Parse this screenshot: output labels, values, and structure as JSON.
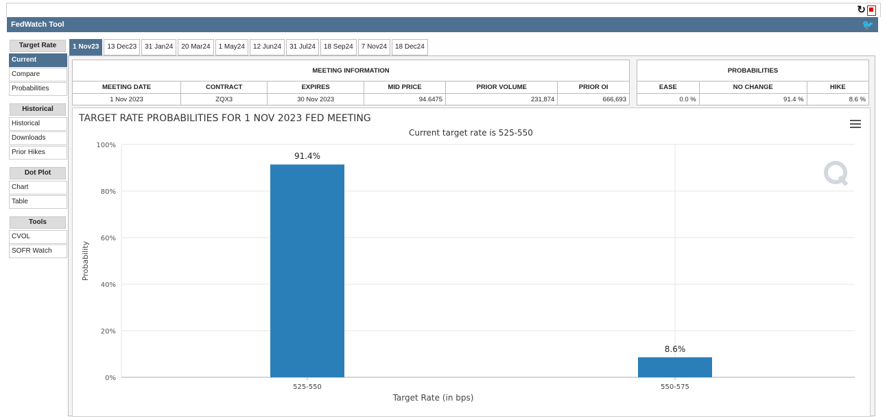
{
  "app": {
    "title": "FedWatch Tool"
  },
  "sidebar": {
    "sections": [
      {
        "title": "Target Rate",
        "items": [
          "Current",
          "Compare",
          "Probabilities"
        ]
      },
      {
        "title": "Historical",
        "items": [
          "Historical",
          "Downloads",
          "Prior Hikes"
        ]
      },
      {
        "title": "Dot Plot",
        "items": [
          "Chart",
          "Table"
        ]
      },
      {
        "title": "Tools",
        "items": [
          "CVOL",
          "SOFR Watch"
        ]
      }
    ],
    "active": "Current"
  },
  "tabs": [
    "1 Nov23",
    "13 Dec23",
    "31 Jan24",
    "20 Mar24",
    "1 May24",
    "12 Jun24",
    "31 Jul24",
    "18 Sep24",
    "7 Nov24",
    "18 Dec24"
  ],
  "active_tab": "1 Nov23",
  "meeting_info": {
    "caption": "MEETING INFORMATION",
    "headers": [
      "MEETING DATE",
      "CONTRACT",
      "EXPIRES",
      "MID PRICE",
      "PRIOR VOLUME",
      "PRIOR OI"
    ],
    "row": [
      "1 Nov 2023",
      "ZQX3",
      "30 Nov 2023",
      "94.6475",
      "231,874",
      "666,693"
    ]
  },
  "probabilities": {
    "caption": "PROBABILITIES",
    "headers": [
      "EASE",
      "NO CHANGE",
      "HIKE"
    ],
    "row": [
      "0.0 %",
      "91.4 %",
      "8.6 %"
    ]
  },
  "chart_data": {
    "type": "bar",
    "title": "TARGET RATE PROBABILITIES FOR 1 NOV 2023 FED MEETING",
    "subtitle": "Current target rate is 525-550",
    "xlabel": "Target Rate (in bps)",
    "ylabel": "Probability",
    "categories": [
      "525-550",
      "550-575"
    ],
    "values": [
      91.4,
      8.6
    ],
    "data_labels": [
      "91.4%",
      "8.6%"
    ],
    "ylim": [
      0,
      100
    ],
    "yticks": [
      "0%",
      "20%",
      "40%",
      "60%",
      "80%",
      "100%"
    ],
    "grid": true,
    "bar_color": "#2b7fb8"
  }
}
